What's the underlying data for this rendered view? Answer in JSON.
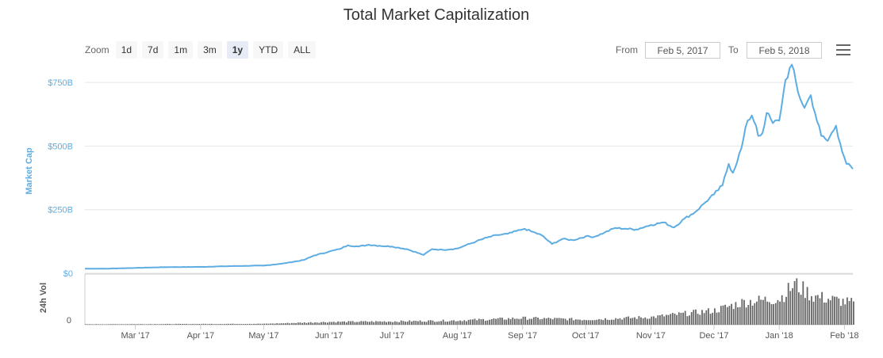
{
  "title": "Total Market Capitalization",
  "toolbar": {
    "zoom_label": "Zoom",
    "zoom_buttons": [
      "1d",
      "7d",
      "1m",
      "3m",
      "1y",
      "YTD",
      "ALL"
    ],
    "active_zoom": "1y",
    "from_label": "From",
    "from_value": "Feb 5, 2017",
    "to_label": "To",
    "to_value": "Feb 5, 2018",
    "menu_icon": "hamburger-menu-icon"
  },
  "colors": {
    "line": "#5dade2",
    "bars": "#666666",
    "axis_text": "#5dade2",
    "grid": "#e6e6e6"
  },
  "chart_data": [
    {
      "type": "line",
      "ylabel": "Market Cap",
      "yticks": [
        "$0",
        "$250B",
        "$500B",
        "$750B"
      ],
      "ytick_values": [
        0,
        250,
        500,
        750
      ],
      "ylim": [
        0,
        800
      ],
      "grid": true,
      "x_tick_labels": [
        "Mar '17",
        "Apr '17",
        "May '17",
        "Jun '17",
        "Jul '17",
        "Aug '17",
        "Sep '17",
        "Oct '17",
        "Nov '17",
        "Dec '17",
        "Jan '18",
        "Feb '18"
      ],
      "x_tick_dates": [
        "2017-03-01",
        "2017-04-01",
        "2017-05-01",
        "2017-06-01",
        "2017-07-01",
        "2017-08-01",
        "2017-09-01",
        "2017-10-01",
        "2017-11-01",
        "2017-12-01",
        "2018-01-01",
        "2018-02-01"
      ],
      "xlim": [
        "2017-02-05",
        "2018-02-05"
      ],
      "series": [
        {
          "points": [
            [
              "2017-02-05",
              18
            ],
            [
              "2017-02-15",
              18
            ],
            [
              "2017-03-01",
              21
            ],
            [
              "2017-03-15",
              24
            ],
            [
              "2017-04-01",
              25
            ],
            [
              "2017-04-15",
              28
            ],
            [
              "2017-05-01",
              30
            ],
            [
              "2017-05-10",
              38
            ],
            [
              "2017-05-20",
              52
            ],
            [
              "2017-05-25",
              70
            ],
            [
              "2017-06-01",
              85
            ],
            [
              "2017-06-06",
              95
            ],
            [
              "2017-06-10",
              110
            ],
            [
              "2017-06-15",
              105
            ],
            [
              "2017-06-20",
              112
            ],
            [
              "2017-06-25",
              108
            ],
            [
              "2017-07-01",
              105
            ],
            [
              "2017-07-08",
              95
            ],
            [
              "2017-07-16",
              72
            ],
            [
              "2017-07-20",
              95
            ],
            [
              "2017-07-25",
              92
            ],
            [
              "2017-08-01",
              97
            ],
            [
              "2017-08-05",
              110
            ],
            [
              "2017-08-10",
              125
            ],
            [
              "2017-08-15",
              140
            ],
            [
              "2017-08-20",
              150
            ],
            [
              "2017-08-25",
              155
            ],
            [
              "2017-08-31",
              170
            ],
            [
              "2017-09-02",
              175
            ],
            [
              "2017-09-05",
              165
            ],
            [
              "2017-09-10",
              150
            ],
            [
              "2017-09-15",
              115
            ],
            [
              "2017-09-20",
              135
            ],
            [
              "2017-09-25",
              130
            ],
            [
              "2017-10-01",
              145
            ],
            [
              "2017-10-05",
              143
            ],
            [
              "2017-10-10",
              160
            ],
            [
              "2017-10-15",
              178
            ],
            [
              "2017-10-20",
              175
            ],
            [
              "2017-10-25",
              172
            ],
            [
              "2017-11-01",
              190
            ],
            [
              "2017-11-07",
              200
            ],
            [
              "2017-11-12",
              180
            ],
            [
              "2017-11-17",
              215
            ],
            [
              "2017-11-22",
              240
            ],
            [
              "2017-11-27",
              280
            ],
            [
              "2017-12-01",
              310
            ],
            [
              "2017-12-05",
              345
            ],
            [
              "2017-12-08",
              430
            ],
            [
              "2017-12-10",
              395
            ],
            [
              "2017-12-14",
              490
            ],
            [
              "2017-12-17",
              600
            ],
            [
              "2017-12-19",
              620
            ],
            [
              "2017-12-21",
              580
            ],
            [
              "2017-12-22",
              540
            ],
            [
              "2017-12-24",
              550
            ],
            [
              "2017-12-26",
              630
            ],
            [
              "2017-12-29",
              590
            ],
            [
              "2018-01-01",
              600
            ],
            [
              "2018-01-04",
              760
            ],
            [
              "2018-01-07",
              820
            ],
            [
              "2018-01-10",
              710
            ],
            [
              "2018-01-13",
              650
            ],
            [
              "2018-01-16",
              700
            ],
            [
              "2018-01-18",
              630
            ],
            [
              "2018-01-21",
              540
            ],
            [
              "2018-01-24",
              520
            ],
            [
              "2018-01-28",
              580
            ],
            [
              "2018-01-30",
              510
            ],
            [
              "2018-02-02",
              430
            ],
            [
              "2018-02-05",
              410
            ]
          ]
        }
      ]
    },
    {
      "type": "bar",
      "ylabel": "24h Vol",
      "yticks": [
        "0"
      ],
      "ylim": [
        0,
        100
      ],
      "note": "daily 24h volume, relative scale; exact values unlabeled",
      "trend": [
        [
          "2017-02-05",
          1
        ],
        [
          "2017-05-01",
          2
        ],
        [
          "2017-06-01",
          6
        ],
        [
          "2017-07-01",
          7
        ],
        [
          "2017-08-01",
          9
        ],
        [
          "2017-09-01",
          14
        ],
        [
          "2017-10-01",
          11
        ],
        [
          "2017-11-01",
          16
        ],
        [
          "2017-12-01",
          30
        ],
        [
          "2017-12-15",
          48
        ],
        [
          "2018-01-01",
          55
        ],
        [
          "2018-01-08",
          85
        ],
        [
          "2018-01-17",
          60
        ],
        [
          "2018-02-05",
          45
        ]
      ]
    }
  ]
}
